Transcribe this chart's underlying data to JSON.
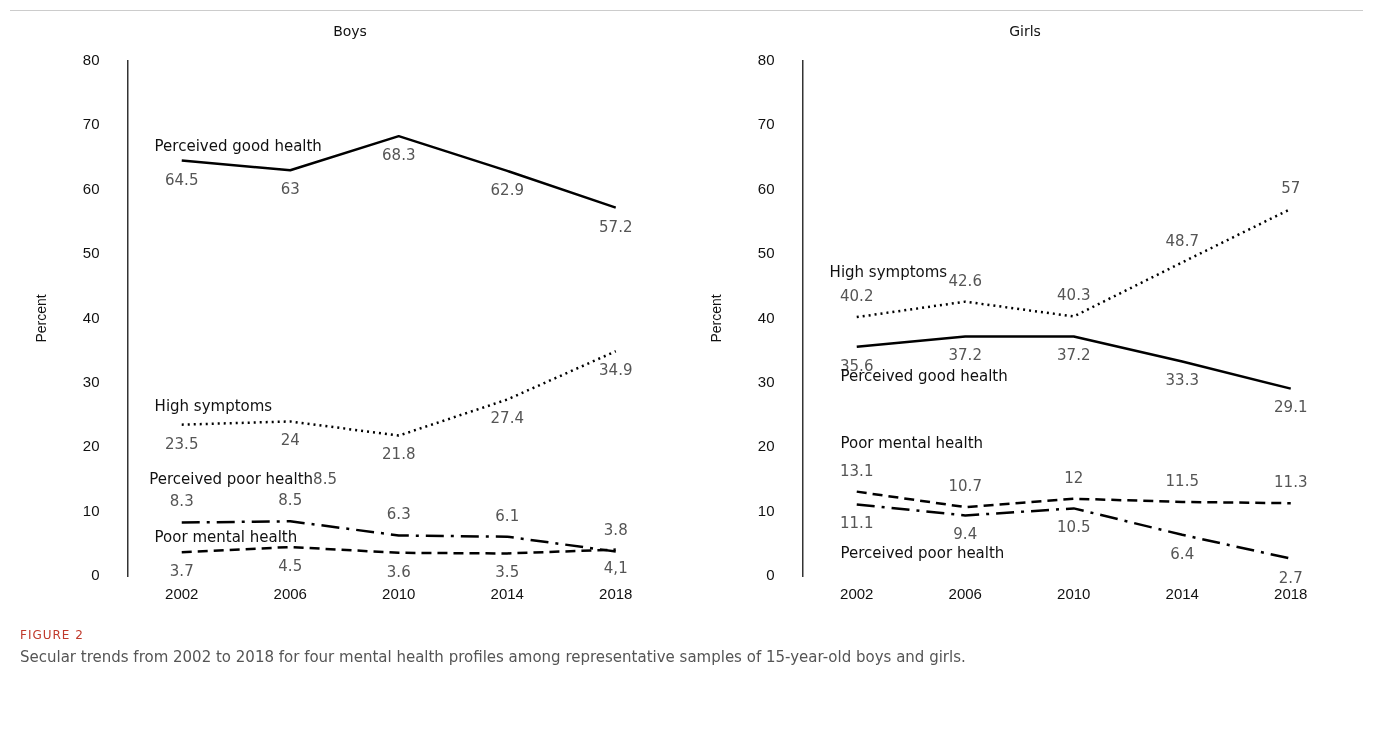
{
  "chart_data": [
    {
      "type": "line",
      "title": "Boys",
      "ylabel": "Percent",
      "categories": [
        "2002",
        "2006",
        "2010",
        "2014",
        "2018"
      ],
      "ylim": [
        0,
        80
      ],
      "yticks": [
        0,
        10,
        20,
        30,
        40,
        50,
        60,
        70,
        80
      ],
      "grid": false,
      "legend": false,
      "marker": "none",
      "series": [
        {
          "name": "Perceived good health",
          "color": "#000000",
          "line_style": "solid",
          "values": [
            64.5,
            63,
            68.3,
            62.9,
            57.2
          ],
          "value_labels": [
            "64.5",
            "63",
            "68.3",
            "62.9",
            "57.2"
          ]
        },
        {
          "name": "High symptoms",
          "color": "#000000",
          "line_style": "dotted",
          "values": [
            23.5,
            24,
            21.8,
            27.4,
            34.9
          ],
          "value_labels": [
            "23.5",
            "24",
            "21.8",
            "27.4",
            "34.9"
          ]
        },
        {
          "name": "Perceived poor health",
          "color": "#000000",
          "line_style": "dashdot",
          "values": [
            8.3,
            8.5,
            6.3,
            6.1,
            3.8
          ],
          "value_labels": [
            "8.3",
            "8.5",
            "6.3",
            "6.1",
            "3.8"
          ]
        },
        {
          "name": "Poor mental health",
          "color": "#000000",
          "line_style": "dashed",
          "values": [
            3.7,
            4.5,
            3.6,
            3.5,
            4.1
          ],
          "value_labels": [
            "3.7",
            "4.5",
            "3.6",
            "3.5",
            "4,1"
          ]
        }
      ],
      "annotations": [
        "8.5"
      ]
    },
    {
      "type": "line",
      "title": "Girls",
      "ylabel": "Percent",
      "categories": [
        "2002",
        "2006",
        "2010",
        "2014",
        "2018"
      ],
      "ylim": [
        0,
        80
      ],
      "yticks": [
        0,
        10,
        20,
        30,
        40,
        50,
        60,
        70,
        80
      ],
      "grid": false,
      "legend": false,
      "marker": "none",
      "series": [
        {
          "name": "Perceived good health",
          "color": "#000000",
          "line_style": "solid",
          "values": [
            35.6,
            37.2,
            37.2,
            33.3,
            29.1
          ],
          "value_labels": [
            "35.6",
            "37.2",
            "37.2",
            "33.3",
            "29.1"
          ]
        },
        {
          "name": "High symptoms",
          "color": "#000000",
          "line_style": "dotted",
          "values": [
            40.2,
            42.6,
            40.3,
            48.7,
            57
          ],
          "value_labels": [
            "40.2",
            "42.6",
            "40.3",
            "48.7",
            "57"
          ]
        },
        {
          "name": "Perceived poor health",
          "color": "#000000",
          "line_style": "dashdot",
          "values": [
            11.1,
            9.4,
            10.5,
            6.4,
            2.7
          ],
          "value_labels": [
            "11.1",
            "9.4",
            "10.5",
            "6.4",
            "2.7"
          ]
        },
        {
          "name": "Poor mental health",
          "color": "#000000",
          "line_style": "dashed",
          "values": [
            13.1,
            10.7,
            12,
            11.5,
            11.3
          ],
          "value_labels": [
            "13.1",
            "10.7",
            "12",
            "11.5",
            "11.3"
          ]
        }
      ],
      "annotations": [
        "FIGURE 2",
        "Secular trends from 2002 to 2018 for four mental health profiles among representative samples of 15-year-old boys and girls."
      ]
    }
  ]
}
